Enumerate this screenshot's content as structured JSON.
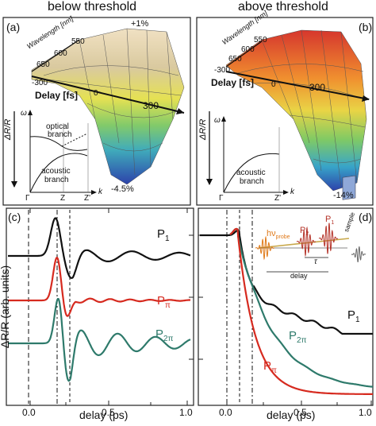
{
  "headings": {
    "left": "below threshold",
    "right": "above threshold"
  },
  "panels": {
    "a": {
      "label": "(a)",
      "wavelength_axis": {
        "label": "Wavelength [nm]",
        "ticks": [
          "550",
          "600",
          "650"
        ]
      },
      "delay_axis": {
        "label": "Delay [fs]",
        "ticks": [
          "-300",
          "0",
          "300"
        ]
      },
      "peak_label": "+1%",
      "min_label": "-4.5%",
      "z_label": "ΔR/R",
      "inset": {
        "omega": "ω",
        "optical": "optical",
        "branch1": "branch",
        "acoustic": "acoustic",
        "branch2": "branch",
        "k_ticks": [
          "Γ",
          "Z",
          "Z'"
        ],
        "k": "k"
      }
    },
    "b": {
      "label": "(b)",
      "wavelength_axis": {
        "label": "Wavelength [nm]",
        "ticks": [
          "550",
          "600",
          "650"
        ]
      },
      "delay_axis": {
        "label": "Delay [fs]",
        "ticks": [
          "-300",
          "0",
          "300"
        ]
      },
      "min_label": "-14%",
      "z_label": "ΔR/R",
      "inset": {
        "omega": "ω",
        "acoustic": "acoustic",
        "branch": "branch",
        "k_ticks": [
          "Γ",
          "Z'"
        ],
        "k": "k"
      }
    },
    "c": {
      "label": "(c)",
      "xlabel": "delay (ps)",
      "ylabel": "ΔR/R (arb. units)",
      "x_ticks": [
        "0.0",
        "0.5",
        "1.0"
      ],
      "series_labels": [
        {
          "main": "P",
          "sub": "1"
        },
        {
          "main": "P",
          "sub": "π"
        },
        {
          "main": "P",
          "sub": "2π"
        }
      ]
    },
    "d": {
      "label": "(d)",
      "xlabel": "delay (ps)",
      "x_ticks": [
        "0.0",
        "0.5",
        "1.0"
      ],
      "series_labels": [
        {
          "main": "P",
          "sub": "1"
        },
        {
          "main": "P",
          "sub": "2π"
        },
        {
          "main": "P",
          "sub": "π"
        }
      ],
      "schematic": {
        "probe_main": "hν",
        "probe_sub": "probe",
        "p2": "P",
        "p2_sub": "2",
        "p1": "P",
        "p1_sub": "1",
        "tau": "τ",
        "delay": "delay",
        "sample": "sample"
      }
    }
  },
  "colors": {
    "black_trace": "#111111",
    "red_trace": "#d62a1f",
    "teal_trace": "#2e7a6b",
    "pulse_orange": "#e07a1a",
    "pulse_red": "#b5342a",
    "sample_blue": "#8fa8d8"
  }
}
